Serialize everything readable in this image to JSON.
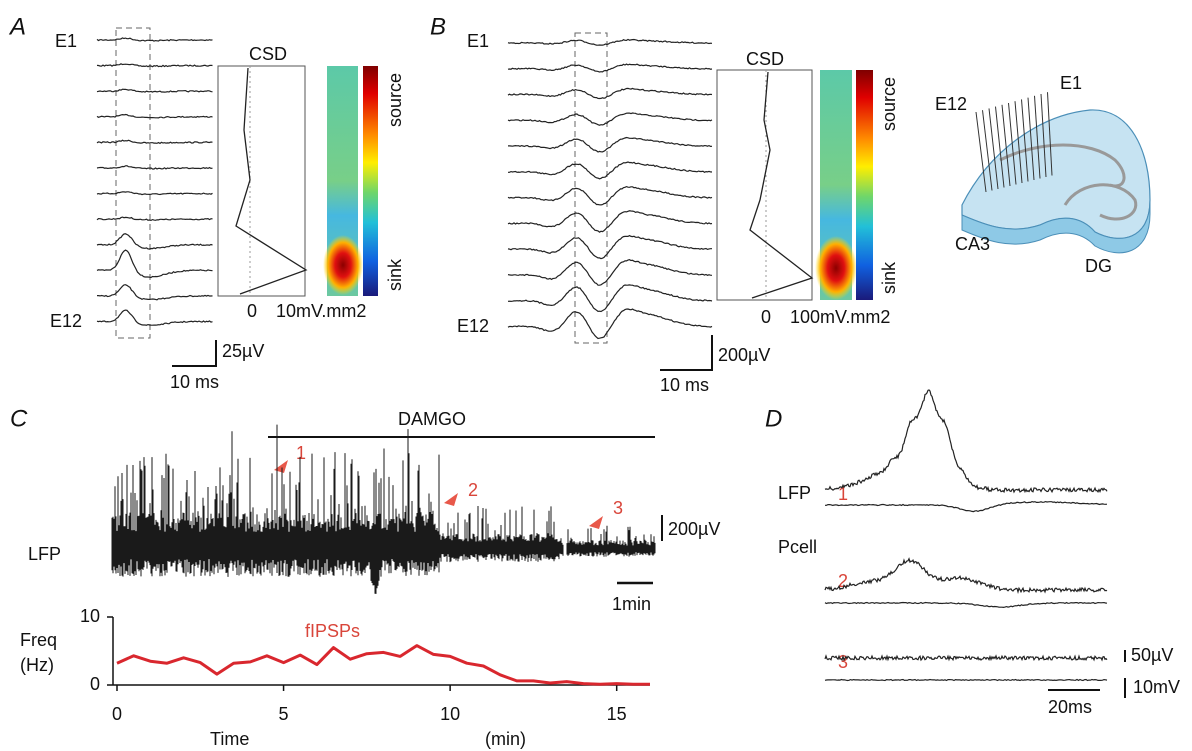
{
  "panel_a": {
    "label": "A",
    "electrodes": [
      "E1",
      "E12"
    ],
    "csd_title": "CSD",
    "csd_axis": [
      "0",
      "10mV.mm2"
    ],
    "colorbar": [
      "source",
      "sink"
    ],
    "scale_bar": [
      "25µV",
      "10 ms"
    ]
  },
  "panel_b": {
    "label": "B",
    "electrodes": [
      "E1",
      "E12"
    ],
    "csd_title": "CSD",
    "csd_axis": [
      "0",
      "100mV.mm2"
    ],
    "colorbar": [
      "source",
      "sink"
    ],
    "scale_bar": [
      "200µV",
      "10 ms"
    ]
  },
  "schematic": {
    "labels": [
      "E12",
      "E1",
      "CA3",
      "DG"
    ]
  },
  "panel_c": {
    "label": "C",
    "drug": "DAMGO",
    "trace_label": "LFP",
    "markers": [
      "1",
      "2",
      "3"
    ],
    "scale_bar": [
      "200µV",
      "1min"
    ]
  },
  "chart_data": {
    "type": "line",
    "y_label": "Freq",
    "y_unit": "(Hz)",
    "x_label": "Time",
    "x_unit": "(min)",
    "xlim": [
      0,
      16
    ],
    "ylim": [
      0,
      10
    ],
    "xticks": [
      0,
      5,
      10,
      15
    ],
    "yticks": [
      0,
      10
    ],
    "x": [
      0,
      0.5,
      1,
      1.5,
      2,
      2.5,
      3,
      3.5,
      4,
      4.5,
      5,
      5.5,
      6,
      6.5,
      7,
      7.5,
      8,
      8.5,
      9,
      9.5,
      10,
      10.5,
      11,
      11.5,
      12,
      12.5,
      13,
      13.5,
      14,
      14.5,
      15,
      15.5,
      16
    ],
    "series": [
      {
        "name": "fIPSPs",
        "color": "#d9272e",
        "values": [
          3.2,
          4.3,
          3.5,
          3.2,
          4.0,
          3.3,
          1.6,
          3.2,
          3.4,
          4.3,
          3.3,
          4.4,
          3.0,
          5.5,
          3.8,
          4.6,
          4.8,
          4.2,
          5.8,
          4.5,
          4.2,
          3.2,
          2.8,
          1.5,
          0.6,
          0.6,
          0.3,
          0.5,
          0.2,
          0.1,
          0.2,
          0.1,
          0.1
        ]
      }
    ]
  },
  "panel_d": {
    "label": "D",
    "trace_labels": [
      "LFP",
      "Pcell"
    ],
    "examples": [
      "1",
      "2",
      "3"
    ],
    "scale_bar": [
      "50µV",
      "10mV",
      "20ms"
    ]
  }
}
